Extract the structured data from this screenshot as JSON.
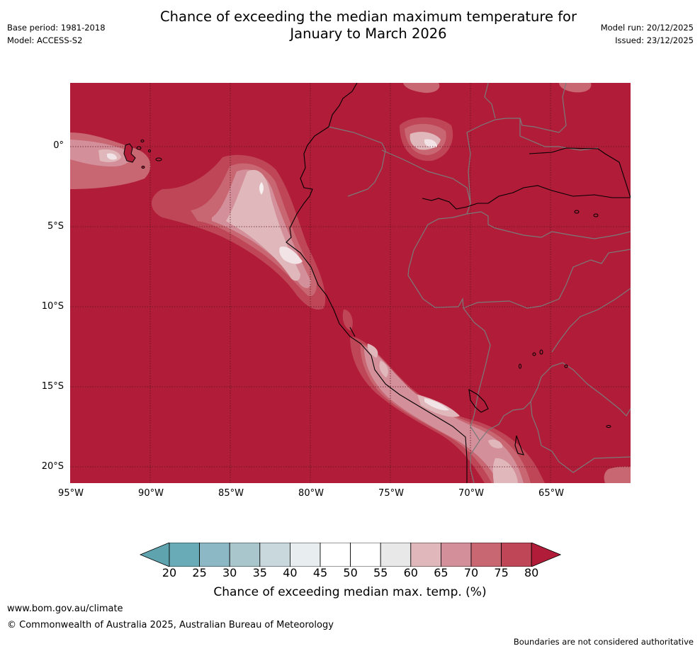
{
  "header": {
    "title_line1": "Chance of exceeding the median maximum temperature for",
    "title_line2": "January to March 2026",
    "base_period": "Base period: 1981-2018",
    "model": "Model: ACCESS-S2",
    "model_run": "Model run: 20/12/2025",
    "issued": "Issued: 23/12/2025"
  },
  "map": {
    "latitude_labels": [
      "0°",
      "5°S",
      "10°S",
      "15°S",
      "20°S"
    ],
    "longitude_labels": [
      "95°W",
      "90°W",
      "85°W",
      "80°W",
      "75°W",
      "70°W",
      "65°W"
    ],
    "background_color": "#b11c38",
    "land_border_color": "#7a7a7a",
    "coastline_color": "#000000"
  },
  "colorbar": {
    "ticks": [
      "20",
      "25",
      "30",
      "35",
      "40",
      "45",
      "50",
      "55",
      "60",
      "65",
      "70",
      "75",
      "80"
    ],
    "colors": [
      "#6aabb8",
      "#8bb8c4",
      "#a8c6cc",
      "#c8d8dc",
      "#e8eef0",
      "#ffffff",
      "#ffffff",
      "#e8e8e8",
      "#e0b8bc",
      "#d4909a",
      "#c86672",
      "#be4656"
    ],
    "under_color": "#5ea3ae",
    "over_color": "#b11c38",
    "label": "Chance of exceeding median max. temp. (%)"
  },
  "footer": {
    "website": "www.bom.gov.au/climate",
    "copyright": "© Commonwealth of Australia 2025, Australian Bureau of Meteorology",
    "disclaimer": "Boundaries are not considered authoritative"
  }
}
